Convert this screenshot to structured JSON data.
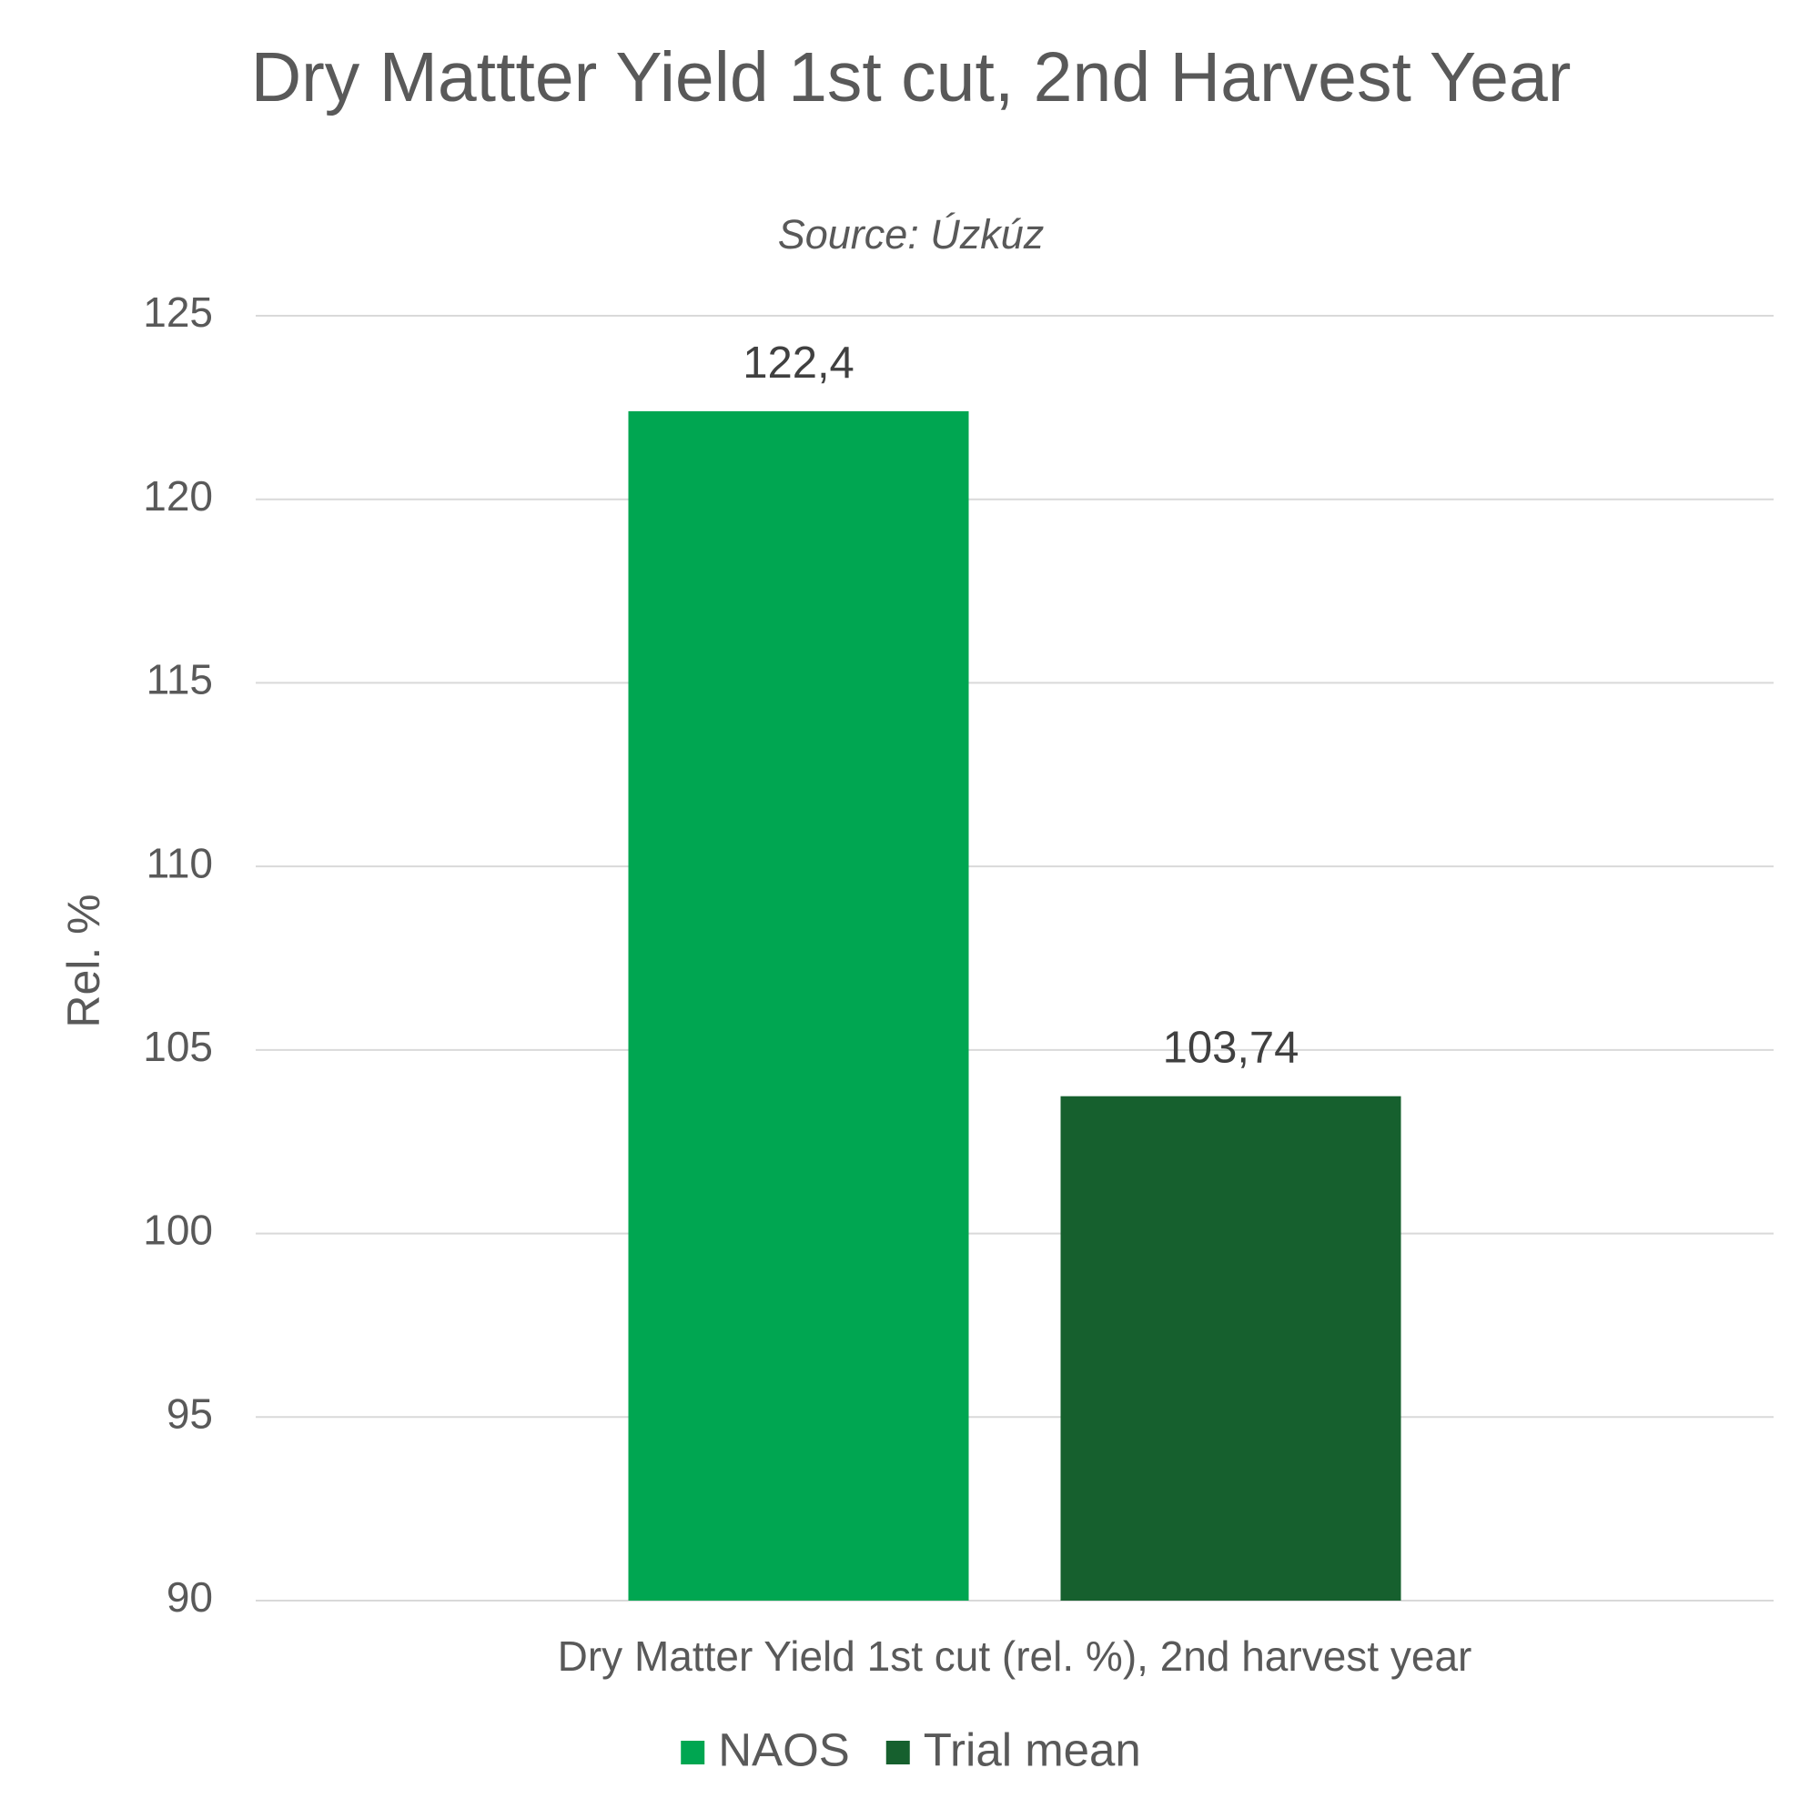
{
  "chart_data": {
    "type": "bar",
    "title": "Dry Mattter Yield 1st cut, 2nd Harvest Year",
    "subtitle": "Source: Úzkúz",
    "y_label": "Rel. %",
    "categories": [
      "Dry Matter Yield 1st cut (rel. %), 2nd harvest year"
    ],
    "series": [
      {
        "name": "NAOS",
        "color": "#00a651",
        "values": [
          122.4
        ],
        "value_labels": [
          "122,4"
        ]
      },
      {
        "name": "Trial mean",
        "color": "#16602e",
        "values": [
          103.74
        ],
        "value_labels": [
          "103,74"
        ]
      }
    ],
    "ylim": [
      90,
      125
    ],
    "yticks": [
      90,
      95,
      100,
      105,
      110,
      115,
      120,
      125
    ],
    "grid": true,
    "legend": "bottom"
  }
}
